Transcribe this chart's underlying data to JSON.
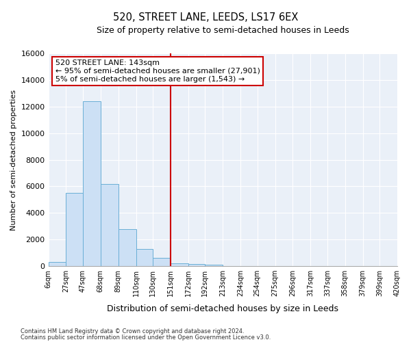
{
  "title": "520, STREET LANE, LEEDS, LS17 6EX",
  "subtitle": "Size of property relative to semi-detached houses in Leeds",
  "xlabel": "Distribution of semi-detached houses by size in Leeds",
  "ylabel": "Number of semi-detached properties",
  "property_label": "520 STREET LANE: 143sqm",
  "pct_smaller": 95,
  "num_smaller": 27901,
  "pct_larger": 5,
  "num_larger": 1543,
  "vline_x": 151,
  "bin_edges": [
    6,
    27,
    47,
    68,
    89,
    110,
    130,
    151,
    172,
    192,
    213,
    234,
    254,
    275,
    296,
    317,
    337,
    358,
    379,
    399,
    420
  ],
  "bar_heights": [
    300,
    5500,
    12400,
    6200,
    2800,
    1300,
    600,
    200,
    150,
    100,
    0,
    0,
    0,
    0,
    0,
    0,
    0,
    0,
    0,
    0
  ],
  "bar_color": "#cce0f5",
  "bar_edge_color": "#6aafd6",
  "vline_color": "#cc0000",
  "background_color": "#eaf0f8",
  "grid_color": "#ffffff",
  "ylim": [
    0,
    16000
  ],
  "yticks": [
    0,
    2000,
    4000,
    6000,
    8000,
    10000,
    12000,
    14000,
    16000
  ],
  "footer_line1": "Contains HM Land Registry data © Crown copyright and database right 2024.",
  "footer_line2": "Contains public sector information licensed under the Open Government Licence v3.0."
}
